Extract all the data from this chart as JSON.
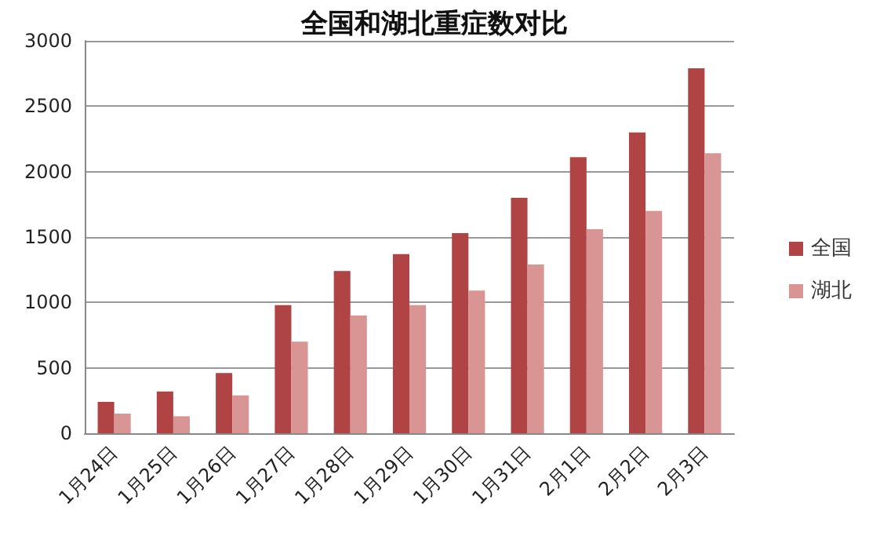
{
  "chart_data": {
    "type": "bar",
    "title": "全国和湖北重症数对比",
    "categories": [
      "1月24日",
      "1月25日",
      "1月26日",
      "1月27日",
      "1月28日",
      "1月29日",
      "1月30日",
      "1月31日",
      "2月1日",
      "2月2日",
      "2月3日"
    ],
    "series": [
      {
        "name": "全国",
        "color": "#b04444",
        "values": [
          240,
          320,
          460,
          980,
          1240,
          1370,
          1530,
          1800,
          2110,
          2300,
          2790
        ]
      },
      {
        "name": "湖北",
        "color": "#d99594",
        "values": [
          150,
          130,
          290,
          700,
          900,
          980,
          1090,
          1290,
          1560,
          1700,
          2140
        ]
      }
    ],
    "ylim": [
      0,
      3000
    ],
    "yticks": [
      0,
      500,
      1000,
      1500,
      2000,
      2500,
      3000
    ],
    "grid": "y",
    "legend": "right"
  }
}
